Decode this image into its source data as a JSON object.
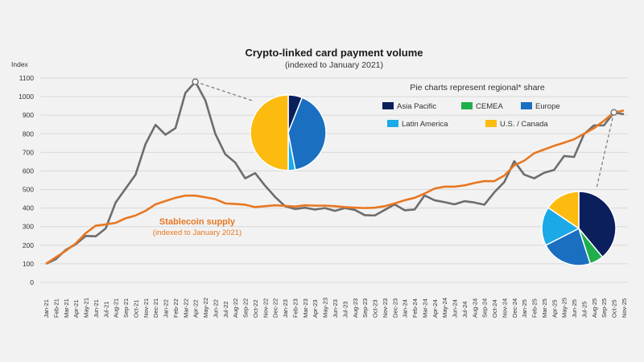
{
  "chart_data": {
    "type": "line",
    "title": "Crypto-linked card payment volume",
    "subtitle": "(indexed to January 2021)",
    "ylabel": "Index",
    "ylim": [
      0,
      1100
    ],
    "yticks": [
      0,
      100,
      200,
      300,
      400,
      500,
      600,
      700,
      800,
      900,
      1000,
      1100
    ],
    "grid": true,
    "x": [
      "Jan-21",
      "Feb-21",
      "Mar-21",
      "Apr-21",
      "May-21",
      "Jun-21",
      "Jul-21",
      "Aug-21",
      "Sep-21",
      "Oct-21",
      "Nov-21",
      "Dec-21",
      "Jan-22",
      "Feb-22",
      "Mar-22",
      "Apr-22",
      "May-22",
      "Jun-22",
      "Jul-22",
      "Aug-22",
      "Sep-22",
      "Oct-22",
      "Nov-22",
      "Dec-22",
      "Jan-23",
      "Feb-23",
      "Mar-23",
      "Apr-23",
      "May-23",
      "Jun-23",
      "Jul-23",
      "Aug-23",
      "Sep-23",
      "Oct-23",
      "Nov-23",
      "Dec-23",
      "Jan-24",
      "Feb-24",
      "Mar-24",
      "Apr-24",
      "May-24",
      "Jun-24",
      "Jul-24",
      "Aug-24",
      "Sep-24",
      "Oct-24",
      "Nov-24",
      "Dec-24",
      "Jan-25",
      "Feb-25",
      "Mar-25",
      "Apr-25",
      "May-25",
      "Jun-25",
      "Jul-25",
      "Aug-25",
      "Sep-25",
      "Oct-25",
      "Nov-25"
    ],
    "series": [
      {
        "id": "card",
        "color": "#6d6d6d",
        "values": [
          100,
          125,
          175,
          205,
          250,
          248,
          290,
          430,
          505,
          580,
          745,
          848,
          795,
          830,
          1020,
          1080,
          980,
          800,
          690,
          645,
          560,
          588,
          520,
          460,
          410,
          395,
          402,
          392,
          400,
          385,
          400,
          390,
          362,
          360,
          390,
          420,
          388,
          392,
          468,
          442,
          432,
          420,
          437,
          430,
          418,
          485,
          540,
          652,
          580,
          560,
          590,
          605,
          680,
          675,
          798,
          845,
          845,
          915,
          905
        ]
      },
      {
        "id": "stablecoin",
        "name": "Stablecoin supply",
        "note": "(indexed to January 2021)",
        "color": "#e87722",
        "values": [
          100,
          135,
          170,
          210,
          265,
          305,
          312,
          320,
          345,
          360,
          385,
          420,
          438,
          455,
          467,
          467,
          458,
          448,
          425,
          422,
          418,
          405,
          410,
          415,
          412,
          408,
          415,
          413,
          413,
          410,
          405,
          402,
          400,
          402,
          410,
          425,
          442,
          455,
          478,
          505,
          515,
          515,
          522,
          535,
          545,
          545,
          575,
          630,
          655,
          695,
          715,
          735,
          752,
          770,
          800,
          830,
          870,
          915,
          925
        ]
      }
    ],
    "pie_legend_title": "Pie charts represent regional* share",
    "regions": [
      {
        "name": "Asia Pacific",
        "color": "#0b1f5c"
      },
      {
        "name": "CEMEA",
        "color": "#1fae4b"
      },
      {
        "name": "Europe",
        "color": "#1a6fc0"
      },
      {
        "name": "Latin America",
        "color": "#1ba9e8"
      },
      {
        "name": "U.S. / Canada",
        "color": "#fdbb10"
      }
    ],
    "pies": [
      {
        "month": "Apr-22",
        "shares": [
          6,
          0,
          41,
          3,
          50
        ]
      },
      {
        "month": "Oct-25",
        "shares": [
          39,
          6,
          22.5,
          17,
          15.5
        ]
      }
    ]
  }
}
